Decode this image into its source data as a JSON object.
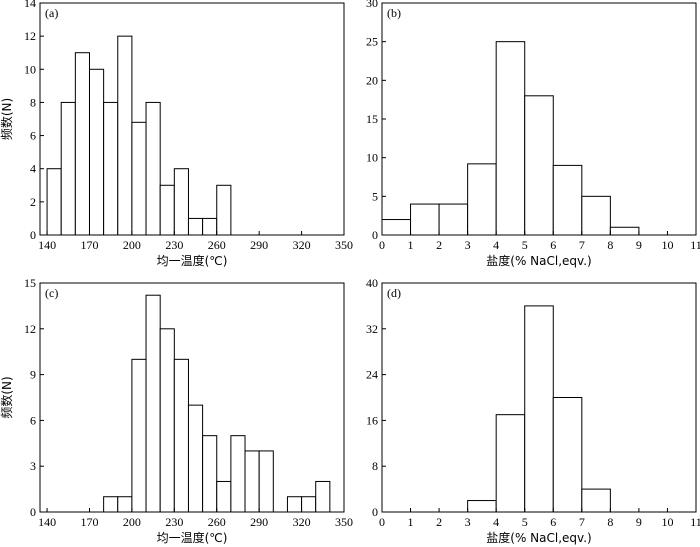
{
  "chart_data": [
    {
      "type": "bar",
      "panel_label": "(a)",
      "xlabel": "均一温度(℃)",
      "ylabel": "频数(N)",
      "xlim": [
        135,
        350
      ],
      "ylim": [
        0,
        14
      ],
      "xticks": [
        140,
        170,
        200,
        230,
        260,
        290,
        320,
        350
      ],
      "yticks": [
        0,
        2,
        4,
        6,
        8,
        10,
        12,
        14
      ],
      "bin_width": 10,
      "bins": [
        {
          "x0": 140,
          "value": 4
        },
        {
          "x0": 150,
          "value": 8
        },
        {
          "x0": 160,
          "value": 11
        },
        {
          "x0": 170,
          "value": 10
        },
        {
          "x0": 180,
          "value": 8
        },
        {
          "x0": 190,
          "value": 12
        },
        {
          "x0": 200,
          "value": 6.8
        },
        {
          "x0": 210,
          "value": 8
        },
        {
          "x0": 220,
          "value": 3
        },
        {
          "x0": 230,
          "value": 4
        },
        {
          "x0": 240,
          "value": 1
        },
        {
          "x0": 250,
          "value": 1
        },
        {
          "x0": 260,
          "value": 3
        }
      ]
    },
    {
      "type": "bar",
      "panel_label": "(b)",
      "xlabel": "盐度(% NaCl,eqv.)",
      "ylabel": "",
      "xlim": [
        0,
        11
      ],
      "ylim": [
        0,
        30
      ],
      "xticks": [
        0,
        1,
        2,
        3,
        4,
        5,
        6,
        7,
        8,
        9,
        10,
        11
      ],
      "yticks": [
        0,
        5,
        10,
        15,
        20,
        25,
        30
      ],
      "bin_width": 1,
      "bins": [
        {
          "x0": 0,
          "value": 2
        },
        {
          "x0": 1,
          "value": 4
        },
        {
          "x0": 2,
          "value": 4
        },
        {
          "x0": 3,
          "value": 9.2
        },
        {
          "x0": 4,
          "value": 25
        },
        {
          "x0": 5,
          "value": 18
        },
        {
          "x0": 6,
          "value": 9
        },
        {
          "x0": 7,
          "value": 5
        },
        {
          "x0": 8,
          "value": 1
        }
      ]
    },
    {
      "type": "bar",
      "panel_label": "(c)",
      "xlabel": "均一温度(℃)",
      "ylabel": "频数(N)",
      "xlim": [
        135,
        350
      ],
      "ylim": [
        0,
        15
      ],
      "xticks": [
        140,
        170,
        200,
        230,
        260,
        290,
        320,
        350
      ],
      "yticks": [
        0,
        3,
        6,
        9,
        12,
        15
      ],
      "bin_width": 10,
      "bins": [
        {
          "x0": 180,
          "value": 1
        },
        {
          "x0": 190,
          "value": 1
        },
        {
          "x0": 200,
          "value": 10
        },
        {
          "x0": 210,
          "value": 14.2
        },
        {
          "x0": 220,
          "value": 12
        },
        {
          "x0": 230,
          "value": 10
        },
        {
          "x0": 240,
          "value": 7
        },
        {
          "x0": 250,
          "value": 5
        },
        {
          "x0": 260,
          "value": 2
        },
        {
          "x0": 270,
          "value": 5
        },
        {
          "x0": 280,
          "value": 4
        },
        {
          "x0": 290,
          "value": 4
        },
        {
          "x0": 310,
          "value": 1
        },
        {
          "x0": 320,
          "value": 1
        },
        {
          "x0": 330,
          "value": 2
        }
      ]
    },
    {
      "type": "bar",
      "panel_label": "(d)",
      "xlabel": "盐度(% NaCl,eqv.)",
      "ylabel": "",
      "xlim": [
        0,
        11
      ],
      "ylim": [
        0,
        40
      ],
      "xticks": [
        0,
        1,
        2,
        3,
        4,
        5,
        6,
        7,
        8,
        9,
        10,
        11
      ],
      "yticks": [
        0,
        8,
        16,
        24,
        32,
        40
      ],
      "bin_width": 1,
      "bins": [
        {
          "x0": 3,
          "value": 2
        },
        {
          "x0": 4,
          "value": 17
        },
        {
          "x0": 5,
          "value": 36
        },
        {
          "x0": 6,
          "value": 20
        },
        {
          "x0": 7,
          "value": 4
        }
      ]
    }
  ]
}
